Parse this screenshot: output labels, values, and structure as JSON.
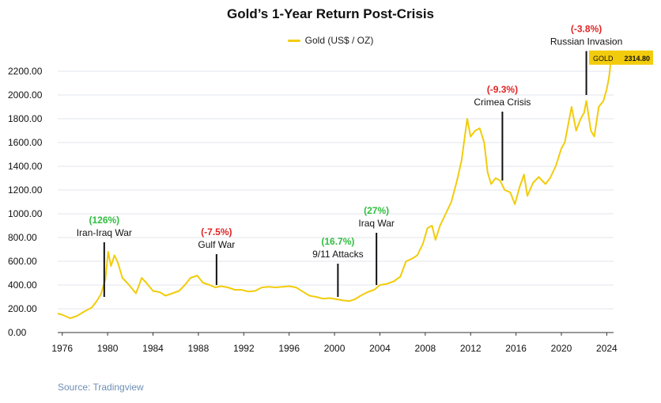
{
  "chart_data": {
    "type": "line",
    "title": "Gold’s 1-Year Return Post-Crisis",
    "xlabel": "",
    "ylabel": "",
    "xlim": [
      1975.6,
      2024.6
    ],
    "ylim": [
      0,
      2300
    ],
    "x_ticks": [
      1976,
      1980,
      1984,
      1988,
      1992,
      1996,
      2000,
      2004,
      2008,
      2012,
      2016,
      2020,
      2024
    ],
    "y_ticks": [
      0,
      200,
      400,
      600,
      800,
      1000,
      1200,
      1400,
      1600,
      1800,
      2000,
      2200
    ],
    "y_tick_labels": [
      "0.00",
      "200.00",
      "400.00",
      "600.00",
      "800.00",
      "1000.00",
      "1200.00",
      "1400.00",
      "1600.00",
      "1800.00",
      "2000.00",
      "2200.00"
    ],
    "grid": true,
    "legend": "top-center",
    "series": [
      {
        "name": "Gold (US$ / OZ)",
        "color": "#f2cc0c",
        "x": [
          1975.6,
          1976.0,
          1976.7,
          1977.3,
          1978.0,
          1978.6,
          1979.0,
          1979.4,
          1979.8,
          1980.05,
          1980.3,
          1980.6,
          1980.9,
          1981.3,
          1981.8,
          1982.5,
          1983.0,
          1983.4,
          1984.0,
          1984.6,
          1985.1,
          1985.7,
          1986.3,
          1986.8,
          1987.3,
          1987.9,
          1988.4,
          1989.0,
          1989.5,
          1990.0,
          1990.6,
          1991.2,
          1991.8,
          1992.4,
          1993.0,
          1993.6,
          1994.2,
          1994.8,
          1995.4,
          1996.0,
          1996.6,
          1997.2,
          1997.8,
          1998.4,
          1999.0,
          1999.6,
          2000.2,
          2000.8,
          2001.3,
          2001.8,
          2002.3,
          2002.9,
          2003.5,
          2004.0,
          2004.6,
          2005.2,
          2005.8,
          2006.3,
          2006.8,
          2007.3,
          2007.8,
          2008.2,
          2008.6,
          2008.9,
          2009.3,
          2009.8,
          2010.3,
          2010.8,
          2011.2,
          2011.7,
          2012.0,
          2012.4,
          2012.8,
          2013.2,
          2013.5,
          2013.8,
          2014.2,
          2014.6,
          2015.0,
          2015.5,
          2015.9,
          2016.3,
          2016.7,
          2017.0,
          2017.5,
          2018.0,
          2018.6,
          2019.0,
          2019.5,
          2020.0,
          2020.3,
          2020.6,
          2020.9,
          2021.3,
          2021.7,
          2022.0,
          2022.2,
          2022.6,
          2022.9,
          2023.3,
          2023.7,
          2024.0,
          2024.2,
          2024.4
        ],
        "values": [
          160,
          150,
          120,
          140,
          180,
          210,
          260,
          320,
          450,
          680,
          560,
          650,
          590,
          460,
          410,
          330,
          460,
          420,
          350,
          340,
          310,
          330,
          350,
          400,
          460,
          480,
          420,
          400,
          380,
          390,
          380,
          360,
          360,
          345,
          350,
          380,
          385,
          380,
          385,
          390,
          380,
          345,
          310,
          300,
          285,
          290,
          280,
          270,
          265,
          280,
          310,
          340,
          360,
          400,
          410,
          430,
          470,
          600,
          620,
          650,
          750,
          880,
          900,
          780,
          900,
          1000,
          1100,
          1280,
          1450,
          1800,
          1650,
          1700,
          1720,
          1600,
          1350,
          1250,
          1300,
          1280,
          1200,
          1180,
          1080,
          1220,
          1330,
          1150,
          1260,
          1310,
          1250,
          1300,
          1400,
          1550,
          1600,
          1750,
          1900,
          1700,
          1800,
          1850,
          1950,
          1700,
          1650,
          1900,
          1950,
          2050,
          2150,
          2314.8
        ]
      }
    ],
    "annotations": [
      {
        "label": "Iran-Iraq War",
        "pct": "(126%)",
        "color": "#2fbf3f",
        "x": 1979.7,
        "y_low": 300,
        "y_high": 760
      },
      {
        "label": "Gulf War",
        "pct": "(-7.5%)",
        "color": "#e02424",
        "x": 1989.6,
        "y_low": 400,
        "y_high": 660
      },
      {
        "label": "9/11 Attacks",
        "pct": "(16.7%)",
        "color": "#2fbf3f",
        "x": 2000.3,
        "y_low": 300,
        "y_high": 580
      },
      {
        "label": "Iraq War",
        "pct": "(27%)",
        "color": "#2fbf3f",
        "x": 2003.7,
        "y_low": 400,
        "y_high": 840
      },
      {
        "label": "Crimea Crisis",
        "pct": "(-9.3%)",
        "color": "#e02424",
        "x": 2014.8,
        "y_low": 1280,
        "y_high": 1860
      },
      {
        "label": "Russian Invasion",
        "pct": "(-3.8%)",
        "color": "#e02424",
        "x": 2022.2,
        "y_low": 2000,
        "y_high": 2370
      }
    ],
    "price_tag": {
      "symbol": "GOLD",
      "value": "2314.80",
      "color": "#f2cc0c"
    }
  },
  "source": "Source: Tradingview"
}
